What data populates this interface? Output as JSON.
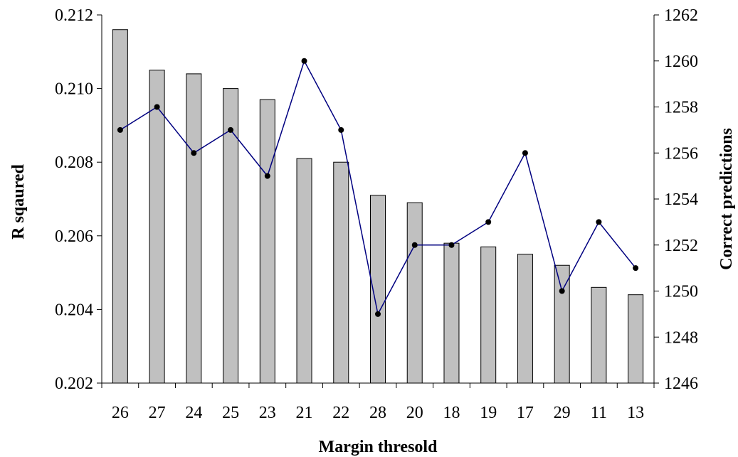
{
  "chart_data": {
    "type": "bar",
    "xlabel": "Margin thresold",
    "categories": [
      "26",
      "27",
      "24",
      "25",
      "23",
      "21",
      "22",
      "28",
      "20",
      "18",
      "19",
      "17",
      "29",
      "11",
      "13"
    ],
    "series": [
      {
        "name": "R sqaured",
        "type": "bar",
        "axis": "left",
        "color": "#c0c0c0",
        "values": [
          0.2116,
          0.2105,
          0.2104,
          0.21,
          0.2097,
          0.2081,
          0.208,
          0.2071,
          0.2069,
          0.2058,
          0.2057,
          0.2055,
          0.2052,
          0.2046,
          0.2044
        ]
      },
      {
        "name": "Correct predictions",
        "type": "line",
        "axis": "right",
        "color": "#000080",
        "marker_color": "#000000",
        "values": [
          1257,
          1258,
          1256,
          1257,
          1255,
          1260,
          1257,
          1249,
          1252,
          1252,
          1253,
          1256,
          1250,
          1253,
          1251
        ]
      }
    ],
    "y_left": {
      "label": "R sqaured",
      "ylim": [
        0.202,
        0.212
      ],
      "ticks": [
        "0.202",
        "0.204",
        "0.206",
        "0.208",
        "0.210",
        "0.212"
      ]
    },
    "y_right": {
      "label": "Correct predictions",
      "ylim": [
        1246,
        1262
      ],
      "ticks": [
        "1246",
        "1248",
        "1250",
        "1252",
        "1254",
        "1256",
        "1258",
        "1260",
        "1262"
      ]
    },
    "grid": false,
    "legend": "none"
  }
}
